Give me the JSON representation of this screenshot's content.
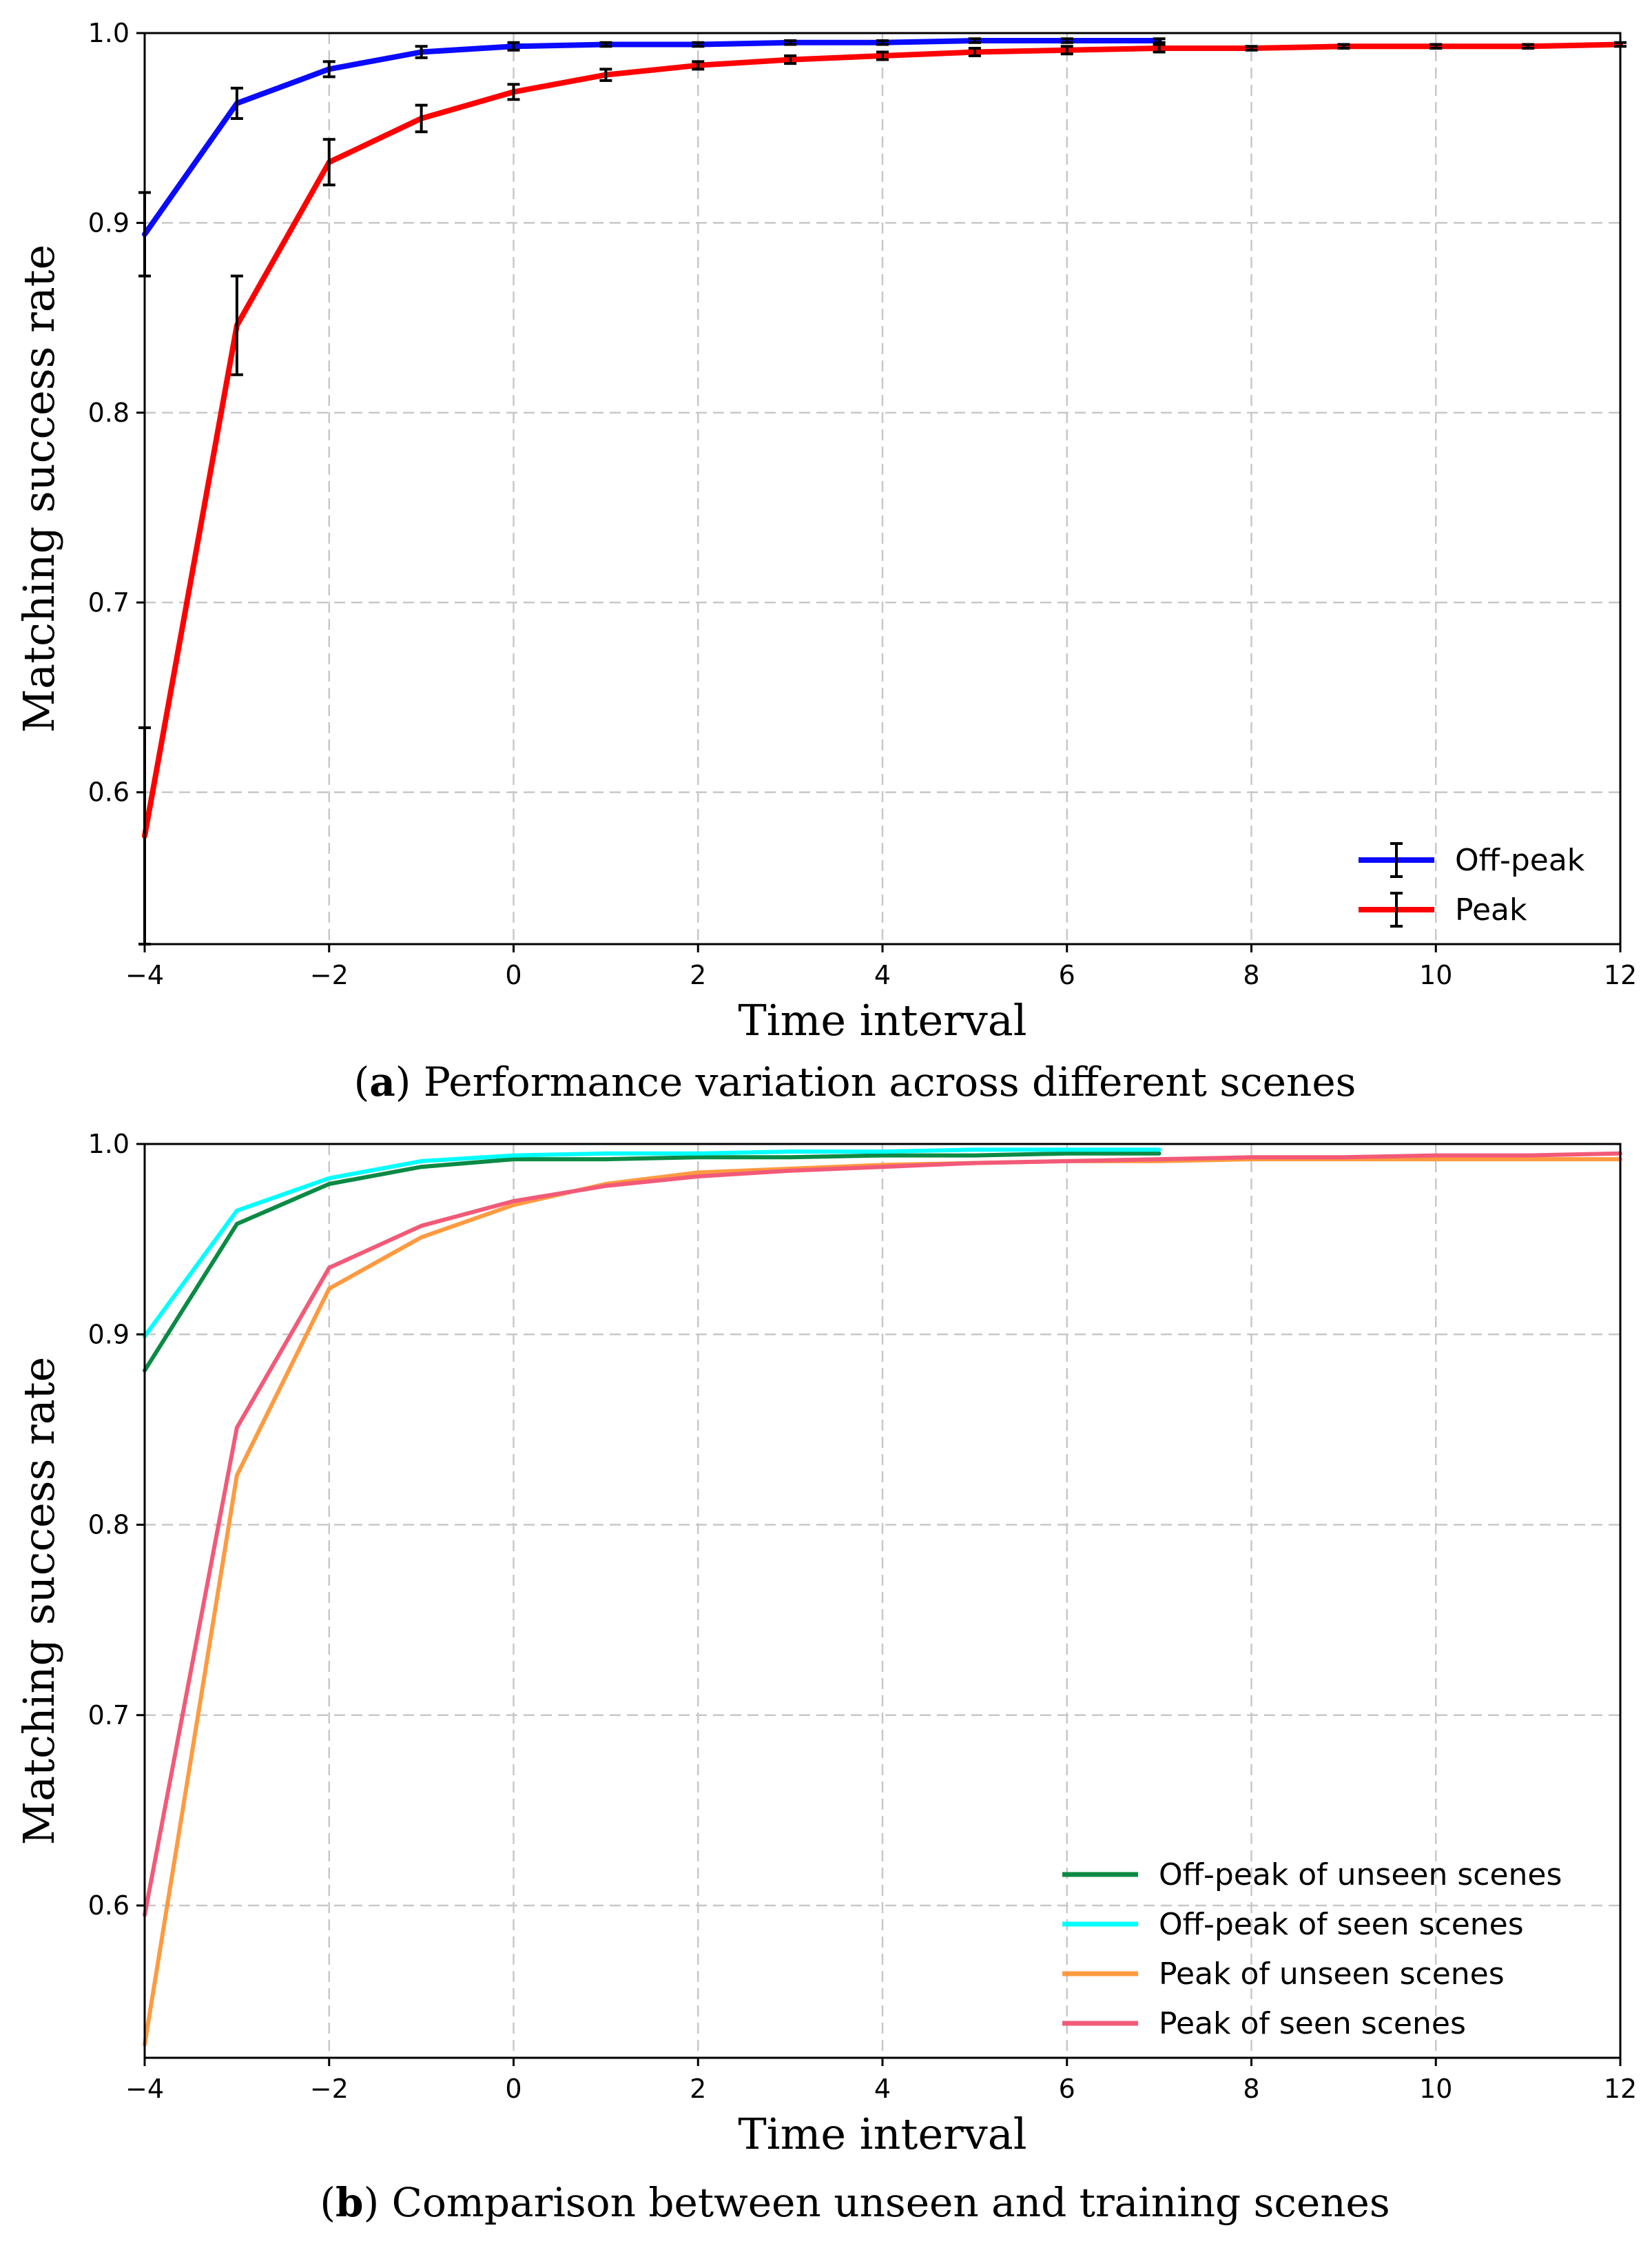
{
  "chart_data": [
    {
      "type": "line",
      "id": "a",
      "caption_letter": "a",
      "caption_text": "Performance variation across different scenes",
      "xlabel": "Time interval",
      "ylabel": "Matching success rate",
      "xlim": [
        -4,
        12
      ],
      "ylim": [
        0.52,
        1.0
      ],
      "xticks": [
        -4,
        -2,
        0,
        2,
        4,
        6,
        8,
        10,
        12
      ],
      "xtick_labels": [
        "−4",
        "−2",
        "0",
        "2",
        "4",
        "6",
        "8",
        "10",
        "12"
      ],
      "yticks": [
        0.6,
        0.7,
        0.8,
        0.9,
        1.0
      ],
      "ytick_labels": [
        "0.6",
        "0.7",
        "0.8",
        "0.9",
        "1.0"
      ],
      "grid": true,
      "legend_position": "bottom-right",
      "legend_style": "errorbar",
      "series": [
        {
          "name": "Off-peak",
          "color": "#0a0aff",
          "x": [
            -4,
            -3,
            -2,
            -1,
            0,
            1,
            2,
            3,
            4,
            5,
            6,
            7
          ],
          "y": [
            0.894,
            0.963,
            0.981,
            0.99,
            0.993,
            0.994,
            0.994,
            0.995,
            0.995,
            0.996,
            0.996,
            0.996
          ],
          "err": [
            0.022,
            0.008,
            0.004,
            0.003,
            0.002,
            0.001,
            0.001,
            0.001,
            0.001,
            0.001,
            0.001,
            0.001
          ]
        },
        {
          "name": "Peak",
          "color": "#ff0000",
          "x": [
            -4,
            -3,
            -2,
            -1,
            0,
            1,
            2,
            3,
            4,
            5,
            6,
            7,
            8,
            9,
            10,
            11,
            12
          ],
          "y": [
            0.577,
            0.846,
            0.932,
            0.955,
            0.969,
            0.978,
            0.983,
            0.986,
            0.988,
            0.99,
            0.991,
            0.992,
            0.992,
            0.993,
            0.993,
            0.993,
            0.994
          ],
          "err": [
            0.057,
            0.026,
            0.012,
            0.007,
            0.004,
            0.003,
            0.002,
            0.002,
            0.002,
            0.002,
            0.002,
            0.002,
            0.001,
            0.001,
            0.001,
            0.001,
            0.001
          ]
        }
      ]
    },
    {
      "type": "line",
      "id": "b",
      "caption_letter": "b",
      "caption_text": "Comparison between unseen and training scenes",
      "xlabel": "Time interval",
      "ylabel": "Matching success rate",
      "xlim": [
        -4,
        12
      ],
      "ylim": [
        0.52,
        1.0
      ],
      "xticks": [
        -4,
        -2,
        0,
        2,
        4,
        6,
        8,
        10,
        12
      ],
      "xtick_labels": [
        "−4",
        "−2",
        "0",
        "2",
        "4",
        "6",
        "8",
        "10",
        "12"
      ],
      "yticks": [
        0.6,
        0.7,
        0.8,
        0.9,
        1.0
      ],
      "ytick_labels": [
        "0.6",
        "0.7",
        "0.8",
        "0.9",
        "1.0"
      ],
      "grid": true,
      "legend_position": "bottom-right",
      "legend_style": "line",
      "series": [
        {
          "name": "Off-peak of unseen scenes",
          "color": "#0b8a45",
          "x": [
            -4,
            -3,
            -2,
            -1,
            0,
            1,
            2,
            3,
            4,
            5,
            6,
            7
          ],
          "y": [
            0.881,
            0.958,
            0.979,
            0.988,
            0.992,
            0.992,
            0.993,
            0.993,
            0.994,
            0.994,
            0.995,
            0.995
          ]
        },
        {
          "name": "Off-peak of seen scenes",
          "color": "#00ffff",
          "x": [
            -4,
            -3,
            -2,
            -1,
            0,
            1,
            2,
            3,
            4,
            5,
            6,
            7
          ],
          "y": [
            0.899,
            0.965,
            0.982,
            0.991,
            0.994,
            0.995,
            0.995,
            0.996,
            0.996,
            0.997,
            0.997,
            0.997
          ]
        },
        {
          "name": "Peak of unseen scenes",
          "color": "#ff9a40",
          "x": [
            -4,
            -3,
            -2,
            -1,
            0,
            1,
            2,
            3,
            4,
            5,
            6,
            7,
            8,
            9,
            10,
            11,
            12
          ],
          "y": [
            0.527,
            0.826,
            0.924,
            0.951,
            0.968,
            0.979,
            0.985,
            0.987,
            0.989,
            0.99,
            0.991,
            0.991,
            0.992,
            0.992,
            0.992,
            0.992,
            0.992
          ]
        },
        {
          "name": "Peak of seen scenes",
          "color": "#f25a78",
          "x": [
            -4,
            -3,
            -2,
            -1,
            0,
            1,
            2,
            3,
            4,
            5,
            6,
            7,
            8,
            9,
            10,
            11,
            12
          ],
          "y": [
            0.595,
            0.851,
            0.935,
            0.957,
            0.97,
            0.978,
            0.983,
            0.986,
            0.988,
            0.99,
            0.991,
            0.992,
            0.993,
            0.993,
            0.994,
            0.994,
            0.995
          ]
        }
      ]
    }
  ]
}
